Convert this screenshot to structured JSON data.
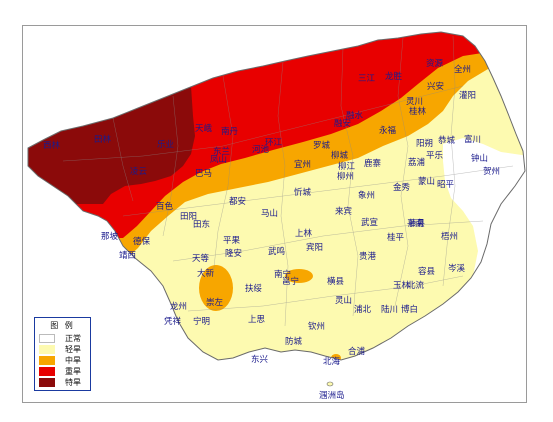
{
  "legend": {
    "title": "图  例",
    "items": [
      {
        "label": "正常",
        "color": "#ffffff"
      },
      {
        "label": "轻旱",
        "color": "#fdfab0"
      },
      {
        "label": "中旱",
        "color": "#f7a600"
      },
      {
        "label": "重旱",
        "color": "#e80000"
      },
      {
        "label": "特旱",
        "color": "#8b0a0a"
      }
    ]
  },
  "colors": {
    "boundary": "#6a6a6a",
    "frame": "#9a9a9a"
  },
  "places": {
    "ziyuan": "资源",
    "quanzhou": "全州",
    "longsheng": "龙胜",
    "sanjiang": "三江",
    "xingan": "兴安",
    "guanyang": "灌阳",
    "lingchuan": "灵川",
    "rongshui": "融水",
    "guilin": "桂林",
    "tiane": "天峨",
    "nandan": "南丹",
    "huanjiang": "环江",
    "luocheng": "罗城",
    "rongan": "融安",
    "yongfu": "永福",
    "yangshuo": "阳朔",
    "gongcheng": "恭城",
    "fuchuan": "富川",
    "leye": "乐业",
    "fengshan": "凤山",
    "hechi": "河池",
    "yizhou": "宜州",
    "liucheng": "柳城",
    "liuzhou": "柳州",
    "pingle": "平乐",
    "zhongshan": "钟山",
    "hezhou": "贺州",
    "xilin": "西林",
    "tianlin": "田林",
    "lingyun": "凌云",
    "bama": "巴马",
    "donglan": "东兰",
    "duan": "都安",
    "xincheng": "忻城",
    "luzhai": "鹿寨",
    "liujiang": "柳江",
    "lipu": "荔浦",
    "mengshan": "蒙山",
    "zhaoping": "昭平",
    "baise": "百色",
    "tianyang": "田阳",
    "tiandong": "田东",
    "mashan": "马山",
    "xiangzhou": "象州",
    "jinxiu": "金秀",
    "wuxuan": "武宣",
    "laibin": "来宾",
    "tengxian": "藤县",
    "wuzhou": "梧州",
    "napo": "那坡",
    "debao": "德保",
    "jingxi": "靖西",
    "pingguo": "平果",
    "shanglin": "上林",
    "binyang": "宾阳",
    "guiping": "桂平",
    "pingnan": "平南",
    "cenxi": "岑溪",
    "tiandeng": "天等",
    "longan": "隆安",
    "wuming": "武鸣",
    "guigang": "贵港",
    "rongxian": "容县",
    "beiliu": "北流",
    "daxin": "大新",
    "fusui": "扶绥",
    "nanning": "南宁",
    "yongning": "邕宁",
    "hengxian": "横县",
    "yulin": "玉林",
    "chongzuo": "崇左",
    "longzhou": "龙州",
    "ningming": "宁明",
    "pingxiang": "凭祥",
    "lingshan": "灵山",
    "luchuan": "陆川",
    "shangsi": "上思",
    "bobai": "博白",
    "pubei": "浦北",
    "qinzhou": "钦州",
    "fangcheng": "防城",
    "dongxing": "东兴",
    "hepu": "合浦",
    "beihai": "北海",
    "weizhoudao": "涠洲岛"
  }
}
